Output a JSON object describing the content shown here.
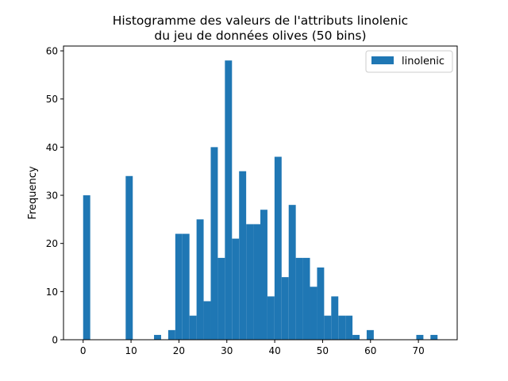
{
  "chart_data": {
    "type": "bar",
    "title_line1": "Histogramme des valeurs de l'attributs linolenic",
    "title_line2": "du jeu de données olives (50 bins)",
    "xlabel": "",
    "ylabel": "Frequency",
    "xlim": [
      -4.1,
      78.1
    ],
    "ylim": [
      0,
      61
    ],
    "xticks": [
      0,
      10,
      20,
      30,
      40,
      50,
      60,
      70
    ],
    "yticks": [
      0,
      10,
      20,
      30,
      40,
      50,
      60
    ],
    "bin_start": 0,
    "bin_width": 1.48,
    "series": [
      {
        "name": "linolenic",
        "color": "#1f77b4",
        "values": [
          30,
          0,
          0,
          0,
          0,
          0,
          34,
          0,
          0,
          0,
          1,
          0,
          2,
          22,
          22,
          5,
          25,
          8,
          40,
          17,
          58,
          21,
          35,
          24,
          24,
          27,
          9,
          38,
          13,
          28,
          17,
          17,
          11,
          15,
          5,
          9,
          5,
          5,
          1,
          0,
          2,
          0,
          0,
          0,
          0,
          0,
          0,
          1,
          0,
          1
        ]
      }
    ],
    "legend": {
      "position": "top-right",
      "label": "linolenic"
    },
    "grid": false
  }
}
